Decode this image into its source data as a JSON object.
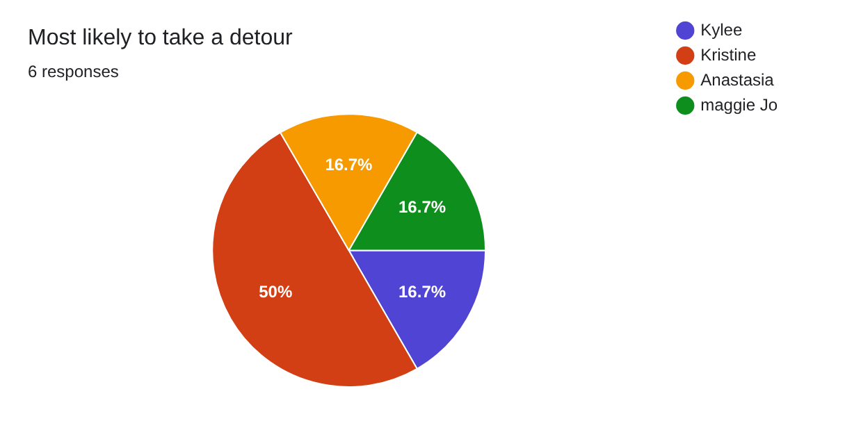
{
  "chart_data": {
    "type": "pie",
    "title": "Most likely to take a detour",
    "subtitle": "6 responses",
    "categories": [
      "Kylee",
      "Kristine",
      "Anastasia",
      "maggie Jo"
    ],
    "values": [
      16.7,
      50,
      16.7,
      16.7
    ],
    "value_labels": [
      "16.7%",
      "50%",
      "16.7%",
      "16.7%"
    ],
    "colors": [
      "#4f44d4",
      "#d33f15",
      "#f79a00",
      "#0e8e1c"
    ],
    "legend": "right"
  }
}
